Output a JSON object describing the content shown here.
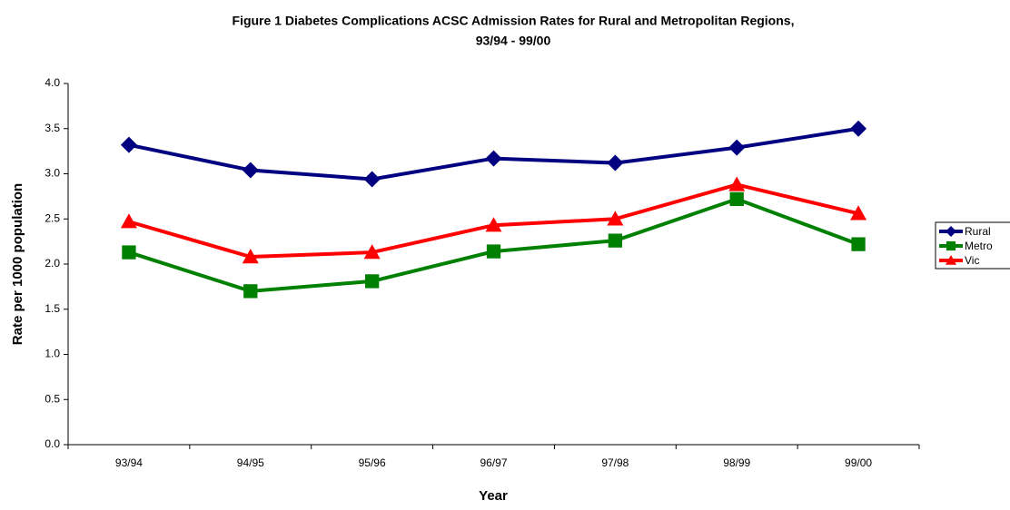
{
  "chart_data": {
    "type": "line",
    "title": [
      "Figure 1  Diabetes Complications ACSC Admission Rates for Rural and Metropolitan Regions,",
      "93/94 - 99/00"
    ],
    "x_label": "Year",
    "y_label": "Rate per 1000 population",
    "categories": [
      "93/94",
      "94/95",
      "95/96",
      "96/97",
      "97/98",
      "98/99",
      "99/00"
    ],
    "series": [
      {
        "name": "Rural",
        "color": "#000080",
        "marker": "diamond",
        "values": [
          3.32,
          3.04,
          2.94,
          3.17,
          3.12,
          3.29,
          3.5
        ]
      },
      {
        "name": "Metro",
        "color": "#008000",
        "marker": "square",
        "values": [
          2.13,
          1.7,
          1.81,
          2.14,
          2.26,
          2.72,
          2.22
        ]
      },
      {
        "name": "Vic",
        "color": "#ff0000",
        "marker": "triangle",
        "values": [
          2.47,
          2.08,
          2.13,
          2.43,
          2.5,
          2.88,
          2.56
        ]
      }
    ],
    "ylim": [
      0,
      4
    ],
    "yticks": [
      {
        "value": 0,
        "label": "0.0"
      },
      0.5,
      {
        "value": 1,
        "label": "1.0"
      },
      1.5,
      {
        "value": 2,
        "label": "2.0"
      },
      2.5,
      {
        "value": 3,
        "label": "3.0"
      },
      3.5,
      {
        "value": 4,
        "label": "4.0"
      }
    ],
    "legend": "right"
  }
}
